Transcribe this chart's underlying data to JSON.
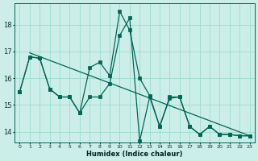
{
  "xlabel": "Humidex (Indice chaleur)",
  "bg_color": "#cceee8",
  "grid_color": "#99ddcc",
  "line_color": "#006655",
  "xlim": [
    -0.5,
    23.5
  ],
  "ylim": [
    13.6,
    18.8
  ],
  "yticks": [
    14,
    15,
    16,
    17,
    18
  ],
  "xticks": [
    0,
    1,
    2,
    3,
    4,
    5,
    6,
    7,
    8,
    9,
    10,
    11,
    12,
    13,
    14,
    15,
    16,
    17,
    18,
    19,
    20,
    21,
    22,
    23
  ],
  "series1": [
    15.5,
    16.8,
    16.75,
    15.6,
    15.3,
    15.3,
    14.7,
    15.3,
    15.3,
    15.8,
    17.6,
    18.25,
    13.65,
    15.3,
    14.2,
    15.25,
    15.3,
    14.2,
    13.9,
    14.2,
    13.9,
    13.9,
    13.85,
    13.85
  ],
  "series2": [
    15.5,
    16.8,
    16.75,
    15.6,
    15.3,
    15.3,
    14.7,
    16.4,
    16.6,
    16.1,
    18.5,
    17.8,
    16.0,
    15.35,
    14.2,
    15.3,
    15.3,
    14.2,
    13.9,
    14.2,
    13.9,
    13.9,
    13.85,
    13.85
  ],
  "trend_start": 16.95,
  "trend_end": 13.85,
  "marker_x1": [
    1,
    2,
    3,
    4,
    5,
    6,
    7,
    8,
    9,
    10,
    11,
    12,
    13,
    14,
    15,
    16,
    17,
    18,
    19,
    20,
    21,
    22,
    23
  ],
  "marker_x2": [
    0,
    1,
    2,
    3,
    4,
    5,
    6,
    7,
    8,
    9,
    10,
    11,
    12,
    13,
    14,
    15,
    16,
    17,
    18,
    19,
    20,
    21,
    22,
    23
  ]
}
